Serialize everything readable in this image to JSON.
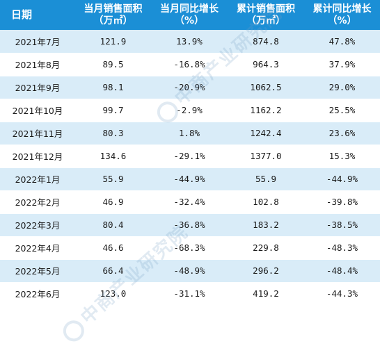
{
  "table": {
    "headers": [
      {
        "line1": "日期",
        "line2": ""
      },
      {
        "line1": "当月销售面积",
        "line2": "（万㎡）"
      },
      {
        "line1": "当月同比增长",
        "line2": "（%）"
      },
      {
        "line1": "累计销售面积",
        "line2": "（万㎡）"
      },
      {
        "line1": "累计同比增长",
        "line2": "（%）"
      }
    ],
    "rows": [
      [
        "2021年7月",
        "121.9",
        "13.9%",
        "874.8",
        "47.8%"
      ],
      [
        "2021年8月",
        "89.5",
        "-16.8%",
        "964.3",
        "37.9%"
      ],
      [
        "2021年9月",
        "98.1",
        "-20.9%",
        "1062.5",
        "29.0%"
      ],
      [
        "2021年10月",
        "99.7",
        "-2.9%",
        "1162.2",
        "25.5%"
      ],
      [
        "2021年11月",
        "80.3",
        "1.8%",
        "1242.4",
        "23.6%"
      ],
      [
        "2021年12月",
        "134.6",
        "-29.1%",
        "1377.0",
        "15.3%"
      ],
      [
        "2022年1月",
        "55.9",
        "-44.9%",
        "55.9",
        "-44.9%"
      ],
      [
        "2022年2月",
        "46.9",
        "-32.4%",
        "102.8",
        "-39.8%"
      ],
      [
        "2022年3月",
        "80.4",
        "-36.8%",
        "183.2",
        "-38.5%"
      ],
      [
        "2022年4月",
        "46.6",
        "-68.3%",
        "229.8",
        "-48.3%"
      ],
      [
        "2022年5月",
        "66.4",
        "-48.9%",
        "296.2",
        "-48.4%"
      ],
      [
        "2022年6月",
        "123.0",
        "-31.1%",
        "419.2",
        "-44.3%"
      ]
    ]
  },
  "watermark": {
    "text": "中商产业研究院"
  },
  "colors": {
    "header_bg": "#1b8fd6",
    "stripe": "#d9ecf8"
  }
}
